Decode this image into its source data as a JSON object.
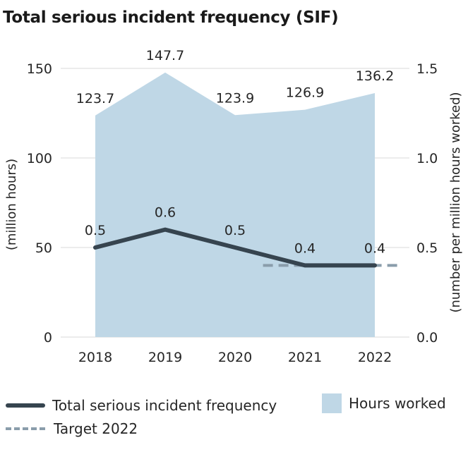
{
  "title": "Total serious incident frequency (SIF)",
  "colors": {
    "area": "#bfd7e6",
    "line": "#36444f",
    "target": "#8a9dab",
    "grid": "#d9d9d9"
  },
  "legend": {
    "line_label": "Total serious incident frequency",
    "target_label": "Target 2022",
    "area_label": "Hours worked"
  },
  "chart_data": {
    "type": "area",
    "categories": [
      "2018",
      "2019",
      "2020",
      "2021",
      "2022"
    ],
    "series": [
      {
        "name": "Hours worked",
        "type": "area",
        "axis": "left",
        "values": [
          123.7,
          147.7,
          123.9,
          126.9,
          136.2
        ],
        "labels": [
          "123.7",
          "147.7",
          "123.9",
          "126.9",
          "136.2"
        ]
      },
      {
        "name": "Total serious incident frequency",
        "type": "line",
        "axis": "right",
        "values": [
          0.5,
          0.6,
          0.5,
          0.4,
          0.4
        ],
        "labels": [
          "0.5",
          "0.6",
          "0.5",
          "0.4",
          "0.4"
        ]
      },
      {
        "name": "Target 2022",
        "type": "line-dashed",
        "axis": "right",
        "x_range": [
          2020.4,
          2022.4
        ],
        "value": 0.4
      }
    ],
    "ylabel_left": "(million hours)",
    "ylabel_right": "(number per million hours worked)",
    "ylim_left": [
      0,
      150
    ],
    "ylim_right": [
      0,
      1.5
    ],
    "yticks_left": [
      "0",
      "50",
      "100",
      "150"
    ],
    "yticks_right": [
      "0.0",
      "0.5",
      "1.0",
      "1.5"
    ],
    "grid": true,
    "legend_position": "bottom"
  }
}
